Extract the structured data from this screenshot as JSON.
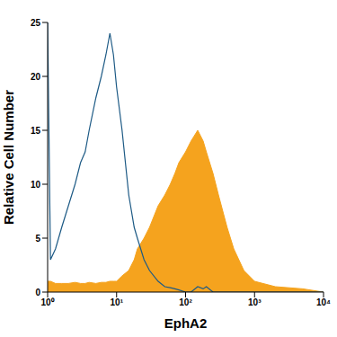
{
  "chart_data": {
    "type": "line",
    "x_label": "EphA2",
    "y_label": "Relative Cell Number",
    "log": "x",
    "grid": false,
    "xlim": [
      1,
      10000
    ],
    "xticks": [
      {
        "value": 1,
        "label": "10⁰"
      },
      {
        "value": 10,
        "label": "10¹"
      },
      {
        "value": 100,
        "label": "10²"
      },
      {
        "value": 1000,
        "label": "10³"
      },
      {
        "value": 10000,
        "label": "10⁴"
      }
    ],
    "ylim": [
      0,
      25
    ],
    "yticks": [
      0,
      5,
      10,
      15,
      20,
      25
    ],
    "x": [
      1,
      1.1,
      1.3,
      1.6,
      2,
      2.5,
      3,
      3.5,
      4,
      5,
      6,
      7,
      8,
      9,
      10,
      12,
      15,
      18,
      20,
      25,
      30,
      40,
      50,
      60,
      70,
      80,
      100,
      120,
      150,
      180,
      200,
      250,
      300,
      400,
      500,
      700,
      1000,
      2000,
      5000,
      10000
    ],
    "series": [
      {
        "type": "area",
        "color": "#f5a31e",
        "marker": "none",
        "values": [
          1,
          1,
          0.8,
          0.8,
          0.8,
          0.9,
          0.8,
          0.8,
          0.9,
          0.8,
          0.9,
          0.9,
          1,
          1,
          1,
          1.5,
          2,
          3,
          4,
          5,
          6,
          8,
          9,
          10,
          11,
          12,
          13,
          14,
          15,
          14,
          13,
          11,
          9,
          6,
          4,
          2,
          1,
          0.5,
          0.3,
          0
        ]
      },
      {
        "type": "line",
        "color": "#1d5a85",
        "marker": "none",
        "values": [
          25,
          3,
          4,
          6,
          8,
          10,
          12,
          13,
          15,
          18,
          20,
          22,
          24,
          22,
          19,
          15,
          9,
          6,
          5,
          3,
          2,
          1,
          0.5,
          0.4,
          0.3,
          0.2,
          0,
          0,
          0.5,
          0.3,
          0.5,
          0,
          0,
          0,
          0,
          0,
          0,
          0,
          0,
          0
        ]
      }
    ]
  }
}
